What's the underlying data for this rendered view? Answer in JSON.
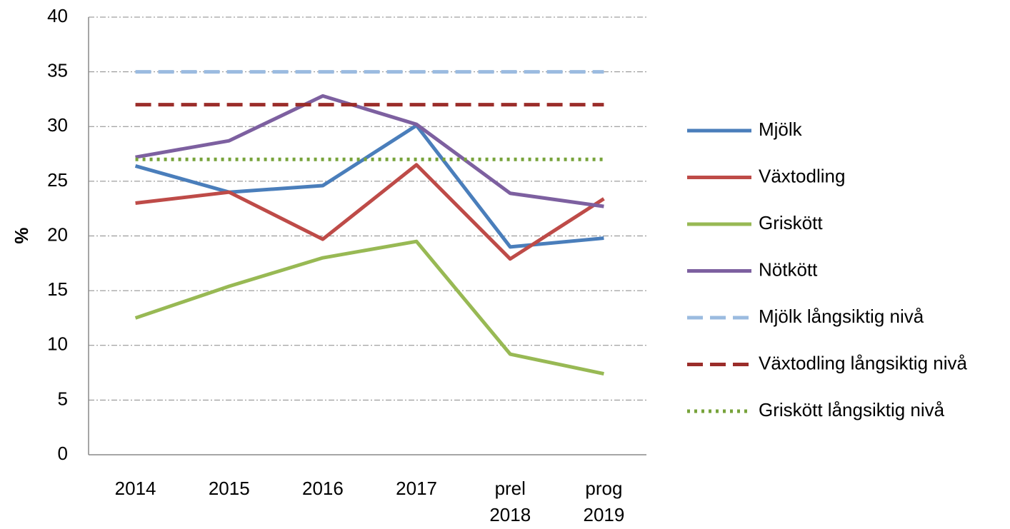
{
  "chart_data": {
    "type": "line",
    "y_label": "%",
    "categories": [
      "2014",
      "2015",
      "2016",
      "2017",
      "prel 2018",
      "prog 2019"
    ],
    "ylim": [
      0,
      40
    ],
    "yticks": [
      0,
      5,
      10,
      15,
      20,
      25,
      30,
      35,
      40
    ],
    "grid": true,
    "legend": "right",
    "series": [
      {
        "name": "Mjölk",
        "color": "#4a7ebb",
        "style": "solid",
        "values": [
          26.4,
          24.0,
          24.6,
          30.1,
          19.0,
          19.8
        ]
      },
      {
        "name": "Växtodling",
        "color": "#be4b48",
        "style": "solid",
        "values": [
          23.0,
          24.0,
          19.7,
          26.5,
          17.9,
          23.4
        ]
      },
      {
        "name": "Griskött",
        "color": "#98b954",
        "style": "solid",
        "values": [
          12.5,
          15.4,
          18.0,
          19.5,
          9.2,
          7.4
        ]
      },
      {
        "name": "Nötkött",
        "color": "#7d60a0",
        "style": "solid",
        "values": [
          27.2,
          28.7,
          32.8,
          30.2,
          23.9,
          22.7
        ]
      },
      {
        "name": "Mjölk långsiktig nivå",
        "color": "#9bbbe0",
        "style": "dashed",
        "values": [
          35,
          35,
          35,
          35,
          35,
          35
        ]
      },
      {
        "name": "Växtodling långsiktig nivå",
        "color": "#9b2d2a",
        "style": "dashed",
        "values": [
          32,
          32,
          32,
          32,
          32,
          32
        ]
      },
      {
        "name": "Griskött långsiktig nivå",
        "color": "#77a33a",
        "style": "dotted",
        "values": [
          27,
          27,
          27,
          27,
          27,
          27
        ]
      }
    ]
  }
}
